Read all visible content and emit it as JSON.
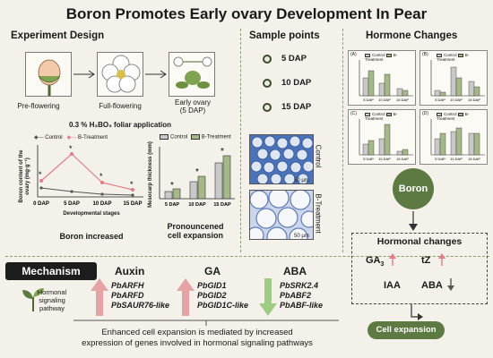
{
  "title": "Boron Promotes Early ovary Development In Pear",
  "experiment": {
    "heading": "Experiment Design",
    "stages": [
      {
        "label": "Pre-flowering"
      },
      {
        "label": "Full-flowering"
      },
      {
        "label": "Early ovary\n(5 DAP)"
      }
    ],
    "application": "0.3 % H₃BO₃ foliar application"
  },
  "sample": {
    "heading": "Sample points",
    "points": [
      "5 DAP",
      "10 DAP",
      "15 DAP"
    ]
  },
  "boron_chart": {
    "legend": [
      "Control",
      "B-Treatment"
    ],
    "ylabel": "Boron content of the\novary (mg·g⁻¹)",
    "xlabel": "Developmental stages",
    "caption": "Boron increased"
  },
  "mesocarp_chart": {
    "legend": [
      "Control",
      "B-Treatment"
    ],
    "ylabel": "Mesocarp thickness (mm)",
    "caption": "Pronouncened\ncell expansion"
  },
  "micro": {
    "labels": [
      "Control",
      "B-Treatment"
    ],
    "scale": "50 μm"
  },
  "hormone": {
    "heading": "Hormone Changes",
    "panels": [
      {
        "tag": "(A)",
        "ylabel": "Indole-3-acetic acid content (ng·g⁻¹)",
        "legend": [
          "Control",
          "B-Treatment"
        ]
      },
      {
        "tag": "(B)",
        "ylabel": "Abscisic acid content (ng·g⁻¹)",
        "legend": [
          "Control",
          "B-Treatment"
        ]
      },
      {
        "tag": "(C)",
        "ylabel": "Gibberellic acid content (ng·g⁻¹)",
        "legend": [
          "Control",
          "B-Treatment"
        ]
      },
      {
        "tag": "(D)",
        "ylabel": "Trans-Zeatin content (ng·g⁻¹)",
        "legend": [
          "Control",
          "B-Treatment"
        ]
      }
    ],
    "xticks": [
      "5 DAP",
      "10 DAP",
      "15 DAP"
    ]
  },
  "flow": {
    "boron": "Boron",
    "hormonal_changes": "Hormonal changes",
    "ga": "GA",
    "ga_sub": "3",
    "tz": "tZ",
    "iaa": "IAA",
    "aba": "ABA",
    "cell_expansion": "Cell expansion"
  },
  "mechanism": {
    "label": "Mechanism",
    "pathway": "Hormonal\nsignaling\npathway",
    "columns": [
      {
        "name": "Auxin",
        "genes": [
          "PbARFH",
          "PbARFD",
          "PbSAUR76-like"
        ],
        "direction": "up"
      },
      {
        "name": "GA",
        "genes": [
          "PbGID1",
          "PbGID2",
          "PbGID1C-like"
        ],
        "direction": "up"
      },
      {
        "name": "ABA",
        "genes": [
          "PbSRK2.4",
          "PbABF2",
          "PbABF-like"
        ],
        "direction": "down"
      }
    ],
    "conclusion": "Enhanced cell expansion is mediated by increased\nexpression of genes involved in hormonal signaling pathways"
  },
  "colors": {
    "control": "#c9c9c9",
    "treatment": "#a5b887",
    "accent": "#5d7a42",
    "up": "#e6a2a5",
    "down": "#9fcc85",
    "line_control": "#555555",
    "line_treat": "#e27c86"
  }
}
